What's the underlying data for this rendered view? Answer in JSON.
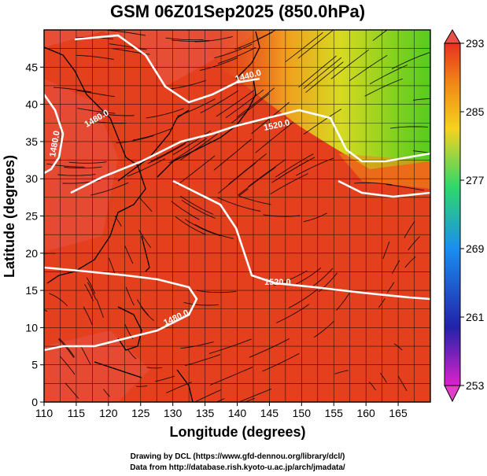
{
  "title": "GSM 06Z01Sep2025 (850.0hPa)",
  "axes": {
    "xlabel": "Longitude (degrees)",
    "ylabel": "Latitude (degrees)",
    "xlim": [
      110,
      170
    ],
    "ylim": [
      0,
      50
    ],
    "xticks": [
      "110",
      "115",
      "120",
      "125",
      "130",
      "135",
      "140",
      "145",
      "150",
      "155",
      "160",
      "165"
    ],
    "yticks": [
      "0",
      "5",
      "10",
      "15",
      "20",
      "25",
      "30",
      "35",
      "40",
      "45"
    ]
  },
  "colorbar": {
    "min": 253,
    "max": 293,
    "ticks": [
      "253",
      "261",
      "269",
      "277",
      "285",
      "293"
    ],
    "colors": [
      "#dd22cc",
      "#2222aa",
      "#1a8ef0",
      "#2ed86a",
      "#f6d21e",
      "#f08a14",
      "#e83020"
    ]
  },
  "contours": [
    {
      "label": "1440.0",
      "level": 1440
    },
    {
      "label": "1480.0",
      "level": 1480
    },
    {
      "label": "1520.0",
      "level": 1520
    },
    {
      "label": "1520.0",
      "level": 1520
    },
    {
      "label": "1480.0",
      "level": 1480
    },
    {
      "label": "1480.0",
      "level": 1480
    }
  ],
  "credits": {
    "line1": "Drawing by DCL (https://www.gfd-dennou.org/library/dcl/)",
    "line2": "Data from http://database.rish.kyoto-u.ac.jp/arch/jmadata/"
  }
}
